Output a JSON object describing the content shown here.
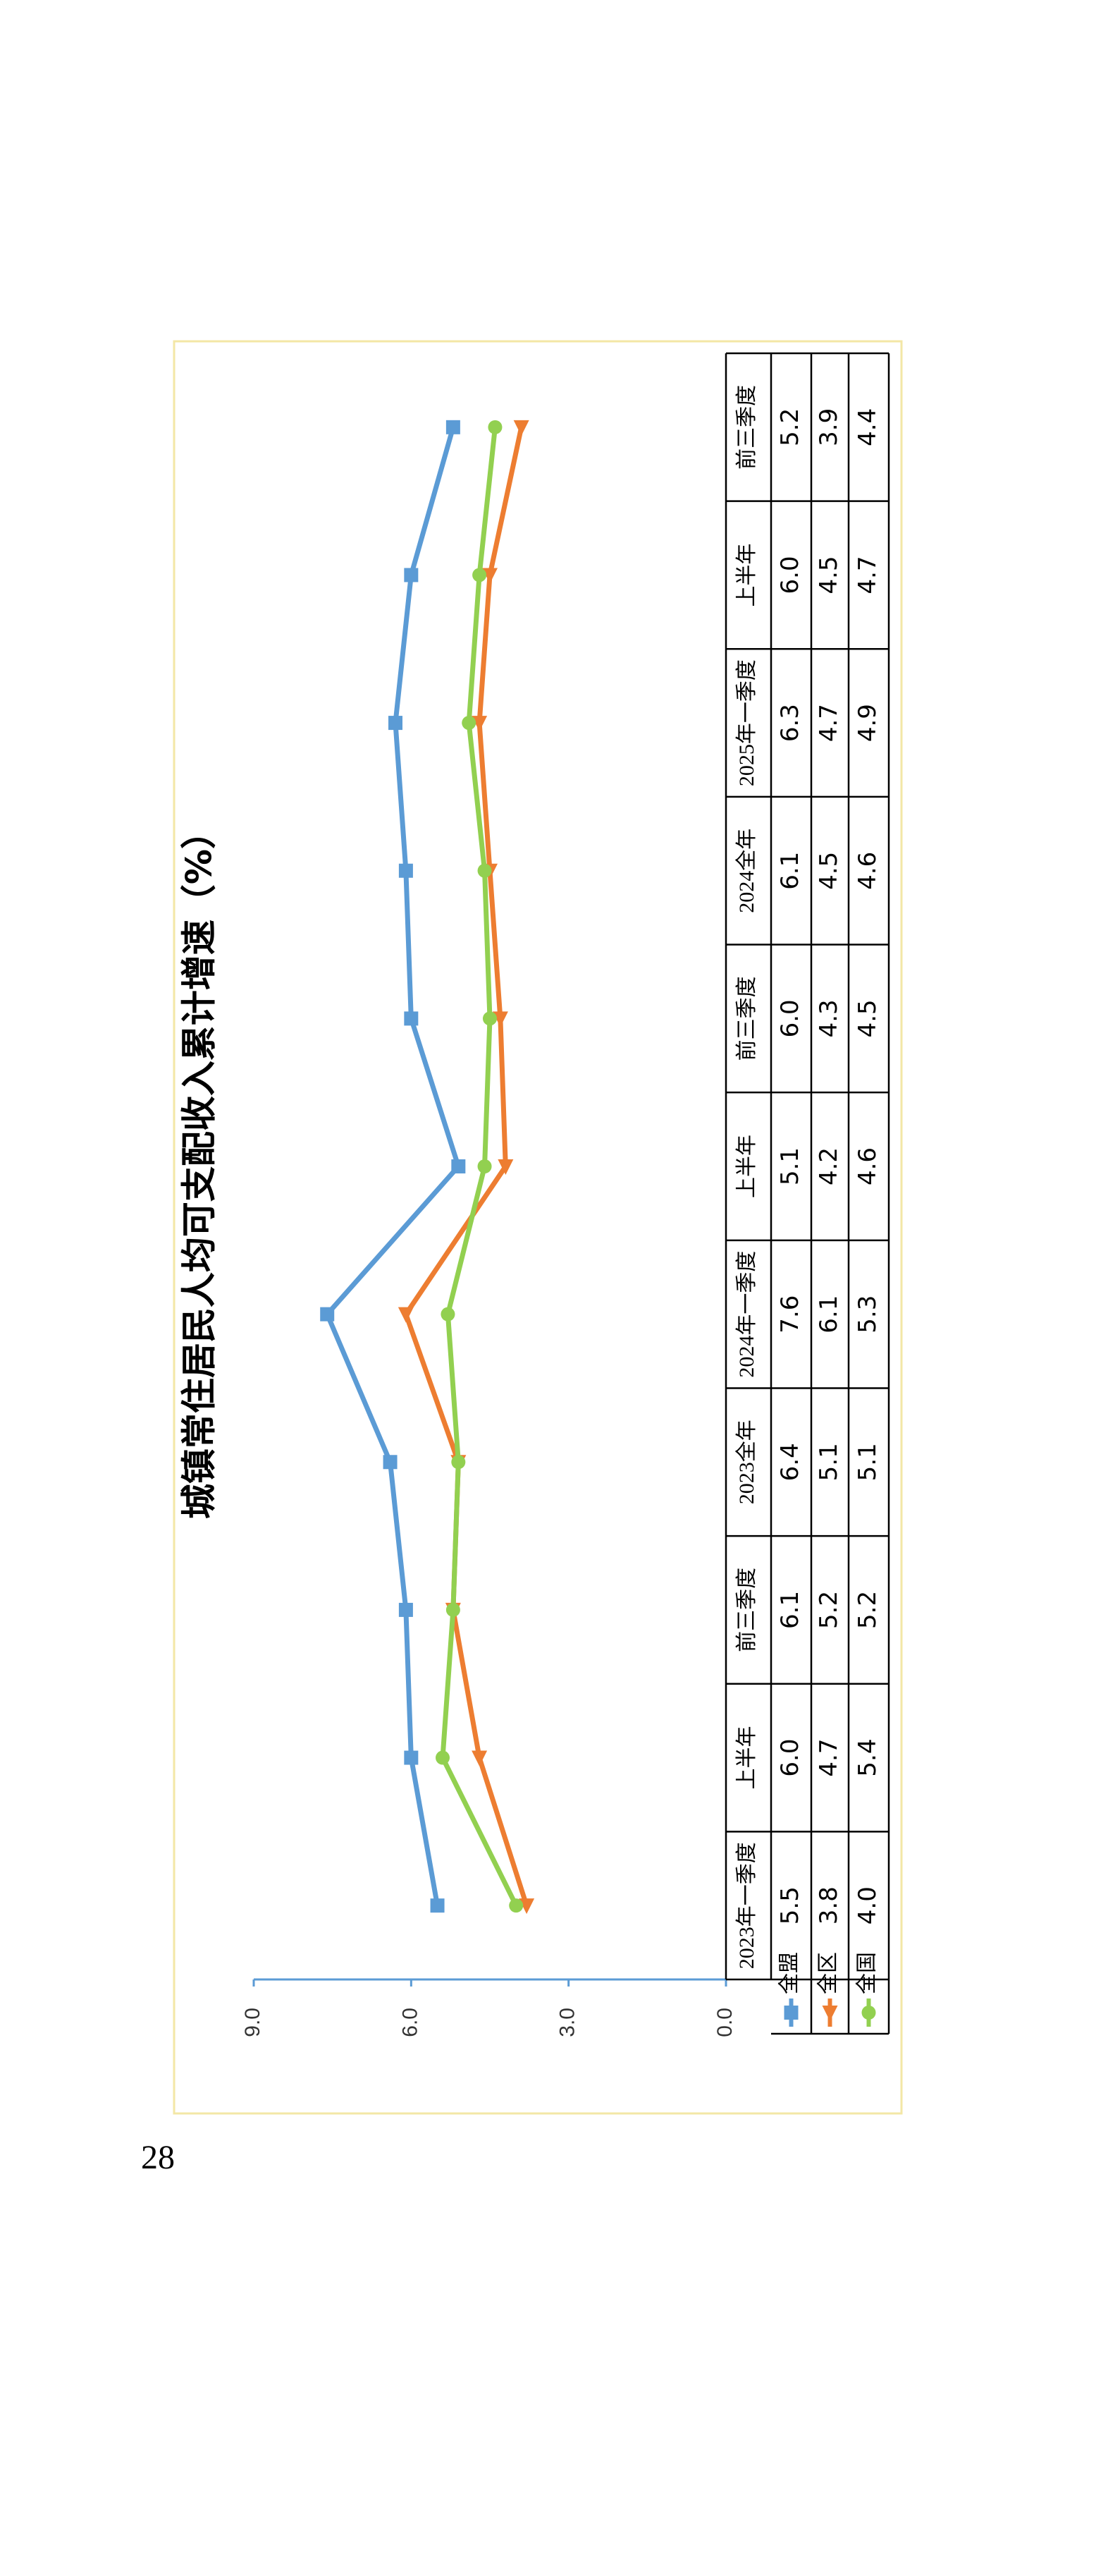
{
  "page_number": "28",
  "chart_data": {
    "type": "line",
    "title": "城镇常住居民人均可支配收入累计增速（%）",
    "categories": [
      "2023年一季度",
      "上半年",
      "前三季度",
      "2023全年",
      "2024年一季度",
      "上半年",
      "前三季度",
      "2024全年",
      "2025年一季度",
      "上半年",
      "前三季度"
    ],
    "series": [
      {
        "name": "全盟",
        "color": "#5b9bd5",
        "marker": "square",
        "values": [
          5.5,
          6.0,
          6.1,
          6.4,
          7.6,
          5.1,
          6.0,
          6.1,
          6.3,
          6.0,
          5.2
        ],
        "value_labels": [
          "5.5",
          "6.0",
          "6.1",
          "6.4",
          "7.6",
          "5.1",
          "6.0",
          "6.1",
          "6.3",
          "6.0",
          "5.2"
        ]
      },
      {
        "name": "全区",
        "color": "#ed7d31",
        "marker": "triangle",
        "values": [
          3.8,
          4.7,
          5.2,
          5.1,
          6.1,
          4.2,
          4.3,
          4.5,
          4.7,
          4.5,
          3.9
        ],
        "value_labels": [
          "3.8",
          "4.7",
          "5.2",
          "5.1",
          "6.1",
          "4.2",
          "4.3",
          "4.5",
          "4.7",
          "4.5",
          "3.9"
        ]
      },
      {
        "name": "全国",
        "color": "#92d050",
        "marker": "circle",
        "values": [
          4.0,
          5.4,
          5.2,
          5.1,
          5.3,
          4.6,
          4.5,
          4.6,
          4.9,
          4.7,
          4.4
        ],
        "value_labels": [
          "4.0",
          "5.4",
          "5.2",
          "5.1",
          "5.3",
          "4.6",
          "4.5",
          "4.6",
          "4.9",
          "4.7",
          "4.4"
        ]
      }
    ],
    "ylim": [
      0,
      9
    ],
    "yticks": [
      {
        "value": 0,
        "label": "0.0"
      },
      {
        "value": 3,
        "label": "3.0"
      },
      {
        "value": 6,
        "label": "6.0"
      },
      {
        "value": 9,
        "label": "9.0"
      }
    ],
    "grid": false,
    "axis_color": "#5b9bd5",
    "border_color": "#f3e7a6"
  }
}
